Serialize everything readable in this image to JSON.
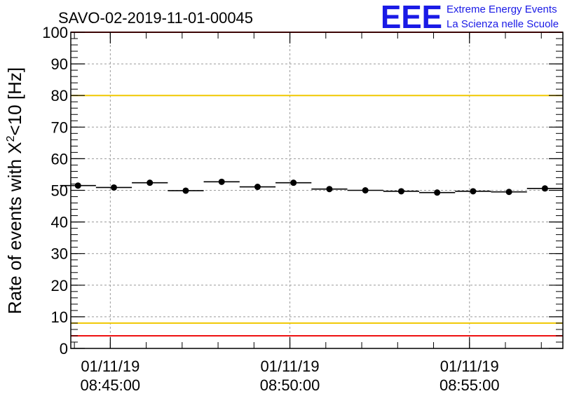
{
  "chart_data": {
    "type": "scatter",
    "title": "SAVO-02-2019-11-01-00045",
    "ylabel_main": "Rate of events with X",
    "ylabel_sup": "2",
    "ylabel_tail": "<10 [Hz]",
    "xlabel": "",
    "ylim": [
      0,
      100
    ],
    "yticks": [
      "0",
      "10",
      "20",
      "30",
      "40",
      "50",
      "60",
      "70",
      "80",
      "90",
      "100"
    ],
    "x_range_minutes": [
      43.9,
      57.6
    ],
    "xticks": [
      {
        "minute": 45,
        "date": "01/11/19",
        "time": "08:45:00"
      },
      {
        "minute": 50,
        "date": "01/11/19",
        "time": "08:50:00"
      },
      {
        "minute": 55,
        "date": "01/11/19",
        "time": "08:55:00"
      }
    ],
    "grid": true,
    "series": [
      {
        "name": "rate",
        "bin_width_minutes": 1.0,
        "x_minutes": [
          44.1,
          45.1,
          46.1,
          47.1,
          48.1,
          49.1,
          50.1,
          51.1,
          52.1,
          53.1,
          54.1,
          55.1,
          56.1,
          57.1
        ],
        "values": [
          51.5,
          50.9,
          52.4,
          49.9,
          52.7,
          51.1,
          52.4,
          50.4,
          50.0,
          49.7,
          49.3,
          49.7,
          49.5,
          50.6
        ]
      }
    ],
    "reference_lines": [
      {
        "name": "upper-red",
        "y": 100,
        "color": "#ee1111"
      },
      {
        "name": "upper-yellow",
        "y": 80,
        "color": "#f0c800"
      },
      {
        "name": "lower-yellow",
        "y": 8,
        "color": "#f0c800"
      },
      {
        "name": "lower-red",
        "y": 4,
        "color": "#ee1111"
      }
    ]
  },
  "logo": {
    "mark": "EEE",
    "line1": "Extreme Energy Events",
    "line2": "La Scienza nelle Scuole",
    "color": "#1a1ae6"
  }
}
